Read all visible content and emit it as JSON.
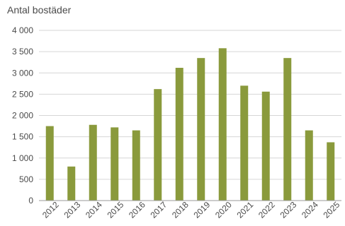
{
  "chart_data": {
    "type": "bar",
    "ylabel": "Antal bostäder",
    "categories": [
      "2012",
      "2013",
      "2014",
      "2015",
      "2016",
      "2017",
      "2018",
      "2019",
      "2020",
      "2021",
      "2022",
      "2023",
      "2024",
      "2025"
    ],
    "values": [
      1750,
      800,
      1780,
      1720,
      1650,
      2620,
      3120,
      3350,
      3580,
      2700,
      2560,
      3350,
      1650,
      1370
    ],
    "ylim": [
      0,
      4000
    ],
    "yticks": [
      0,
      500,
      1000,
      1500,
      2000,
      2500,
      3000,
      3500,
      4000
    ],
    "ytick_labels": [
      "0",
      "500",
      "1 000",
      "1 500",
      "2 000",
      "2 500",
      "3 000",
      "3 500",
      "4 000"
    ],
    "bar_color": "#8a9a3c",
    "grid": true,
    "legend": "none"
  }
}
